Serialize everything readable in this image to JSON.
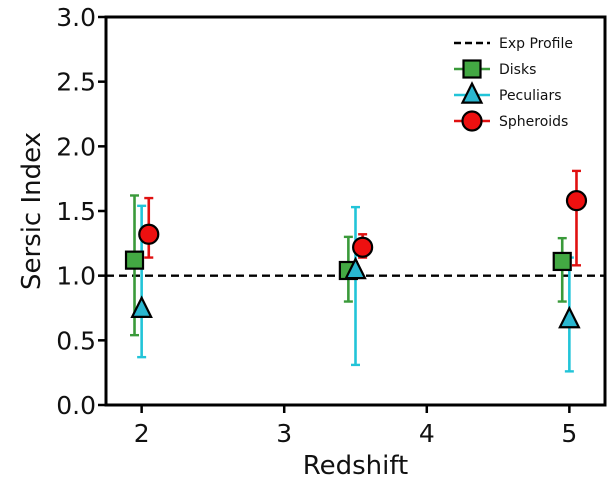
{
  "chart_data": {
    "type": "scatter",
    "title": "",
    "xlabel": "Redshift",
    "ylabel": "Sersic Index",
    "xlim": [
      1.75,
      5.25
    ],
    "ylim": [
      0.0,
      3.0
    ],
    "x_ticks": [
      2,
      3,
      4,
      5
    ],
    "x_tick_labels": [
      "2",
      "3",
      "4",
      "5"
    ],
    "y_ticks": [
      0.0,
      0.5,
      1.0,
      1.5,
      2.0,
      2.5,
      3.0
    ],
    "y_tick_labels": [
      "0.0",
      "0.5",
      "1.0",
      "1.5",
      "2.0",
      "2.5",
      "3.0"
    ],
    "grid": false,
    "legend_position": "top-right",
    "reference_line": {
      "name": "Exp Profile",
      "y": 1.0,
      "style": "dashed",
      "color": "#000000"
    },
    "series": [
      {
        "name": "Disks",
        "marker": "square",
        "color": "#3a9a3a",
        "fill": "#43a843",
        "points": [
          {
            "x": 1.95,
            "y": 1.12,
            "y_low": 0.54,
            "y_high": 1.62
          },
          {
            "x": 3.45,
            "y": 1.04,
            "y_low": 0.8,
            "y_high": 1.3
          },
          {
            "x": 4.95,
            "y": 1.11,
            "y_low": 0.8,
            "y_high": 1.29
          }
        ]
      },
      {
        "name": "Peculiars",
        "marker": "triangle",
        "color": "#22c4d8",
        "fill": "#2ab7d0",
        "points": [
          {
            "x": 2.0,
            "y": 0.74,
            "y_low": 0.37,
            "y_high": 1.54
          },
          {
            "x": 3.5,
            "y": 1.04,
            "y_low": 0.31,
            "y_high": 1.53
          },
          {
            "x": 5.0,
            "y": 0.66,
            "y_low": 0.26,
            "y_high": 1.14
          }
        ]
      },
      {
        "name": "Spheroids",
        "marker": "circle",
        "color": "#e01010",
        "fill": "#ee1010",
        "points": [
          {
            "x": 2.05,
            "y": 1.32,
            "y_low": 1.14,
            "y_high": 1.6
          },
          {
            "x": 3.55,
            "y": 1.22,
            "y_low": 1.14,
            "y_high": 1.32
          },
          {
            "x": 5.05,
            "y": 1.58,
            "y_low": 1.08,
            "y_high": 1.81
          }
        ]
      }
    ]
  }
}
